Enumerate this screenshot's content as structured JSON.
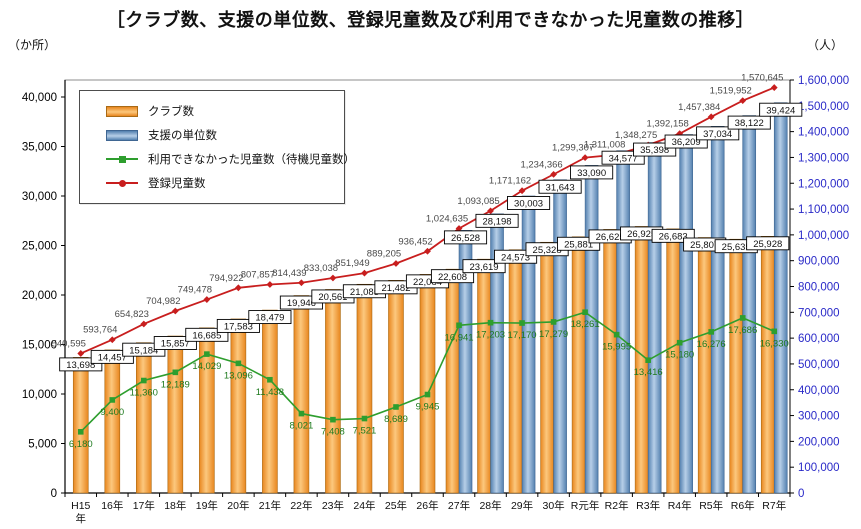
{
  "title": "［クラブ数、支援の単位数、登録児童数及び利用できなかった児童数の推移］",
  "chart_data": {
    "type": "combo-bar-line",
    "grid": false,
    "legend_position": "top-left",
    "categories": [
      "H15年",
      "16年",
      "17年",
      "18年",
      "19年",
      "20年",
      "21年",
      "22年",
      "23年",
      "24年",
      "25年",
      "26年",
      "27年",
      "28年",
      "29年",
      "30年",
      "R元年",
      "R2年",
      "R3年",
      "R4年",
      "R5年",
      "R6年",
      "R7年"
    ],
    "left_axis": {
      "unit": "（か所）",
      "min": 0,
      "max": 40000,
      "step": 5000,
      "color": "#000000"
    },
    "right_axis": {
      "unit": "（人）",
      "min": 0,
      "max": 1600000,
      "step": 100000,
      "color": "#2a2ac8"
    },
    "series": [
      {
        "name": "クラブ数",
        "type": "bar",
        "axis": "left",
        "label_style": "boxed",
        "color_edge": "#e8861e",
        "color_center": "#fcc87e",
        "border": "#a96a15",
        "values": [
          13698,
          14457,
          15184,
          15857,
          16685,
          17583,
          18479,
          19946,
          20561,
          21085,
          21482,
          22084,
          22608,
          23619,
          24573,
          25328,
          25881,
          26625,
          26925,
          26683,
          25807,
          25635,
          25928
        ]
      },
      {
        "name": "支援の単位数",
        "type": "bar",
        "axis": "left",
        "label_style": "boxed",
        "color_edge": "#5380af",
        "color_center": "#b7cfe8",
        "border": "#3f6692",
        "values": [
          null,
          null,
          null,
          null,
          null,
          null,
          null,
          null,
          null,
          null,
          null,
          null,
          26528,
          28198,
          30003,
          31643,
          33090,
          34577,
          35398,
          36209,
          37034,
          38122,
          39424
        ]
      },
      {
        "name": "利用できなかった児童数（待機児童数）",
        "type": "line",
        "axis": "left",
        "marker": "square",
        "color": "#2e9e2e",
        "label_color": "#1e7a1e",
        "values": [
          6180,
          9400,
          11360,
          12189,
          14029,
          13096,
          11438,
          8021,
          7408,
          7521,
          8689,
          9945,
          16941,
          17203,
          17170,
          17279,
          18261,
          15995,
          13416,
          15180,
          16276,
          17686,
          16330
        ]
      },
      {
        "name": "登録児童数",
        "type": "line",
        "axis": "right",
        "marker": "diamond",
        "color": "#c81e1e",
        "label_color": "#4a4a4a",
        "values": [
          540595,
          593764,
          654823,
          704982,
          749478,
          794922,
          807857,
          814439,
          833038,
          851949,
          889205,
          936452,
          1024635,
          1093085,
          1171162,
          1234366,
          1299307,
          1311008,
          1348275,
          1392158,
          1457384,
          1519952,
          1570645
        ]
      }
    ]
  }
}
